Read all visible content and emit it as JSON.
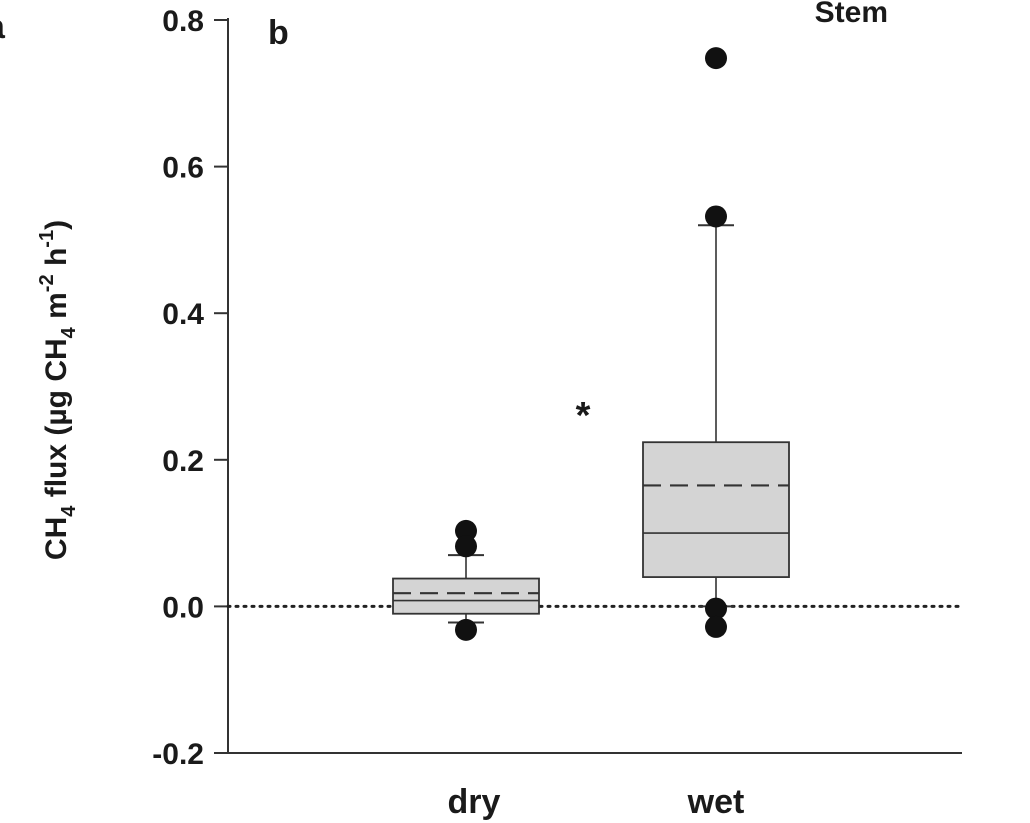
{
  "panel_left_letter": "a",
  "chart_data": {
    "type": "box",
    "panel_letter": "b",
    "title": "Stem",
    "ylabel": {
      "prefix": "CH",
      "sub1": "4",
      "mid": " flux (µg CH",
      "sub2": "4",
      "mid2": " m",
      "sup1": "-2",
      "mid3": " h",
      "sup2": "-1",
      "suffix": ")"
    },
    "ylim": [
      -0.2,
      0.8
    ],
    "yticks": [
      -0.2,
      0.0,
      0.2,
      0.4,
      0.6,
      0.8
    ],
    "ytick_labels": [
      "-0.2",
      "0.0",
      "0.2",
      "0.4",
      "0.6",
      "0.8"
    ],
    "reference_line": 0.0,
    "significance_marker": "*",
    "categories": [
      "dry",
      "wet"
    ],
    "boxes": [
      {
        "category": "dry",
        "whisker_low": -0.022,
        "q1": -0.01,
        "median": 0.008,
        "mean": 0.018,
        "q3": 0.038,
        "whisker_high": 0.07,
        "outliers": [
          0.103,
          0.082,
          -0.032
        ]
      },
      {
        "category": "wet",
        "whisker_low": 0.0,
        "q1": 0.04,
        "median": 0.1,
        "mean": 0.165,
        "q3": 0.224,
        "whisker_high": 0.52,
        "outliers": [
          0.748,
          0.532,
          -0.003,
          -0.028
        ]
      }
    ],
    "colors": {
      "box_fill": "#d4d4d4",
      "stroke": "#333333",
      "outlier": "#111111"
    }
  }
}
